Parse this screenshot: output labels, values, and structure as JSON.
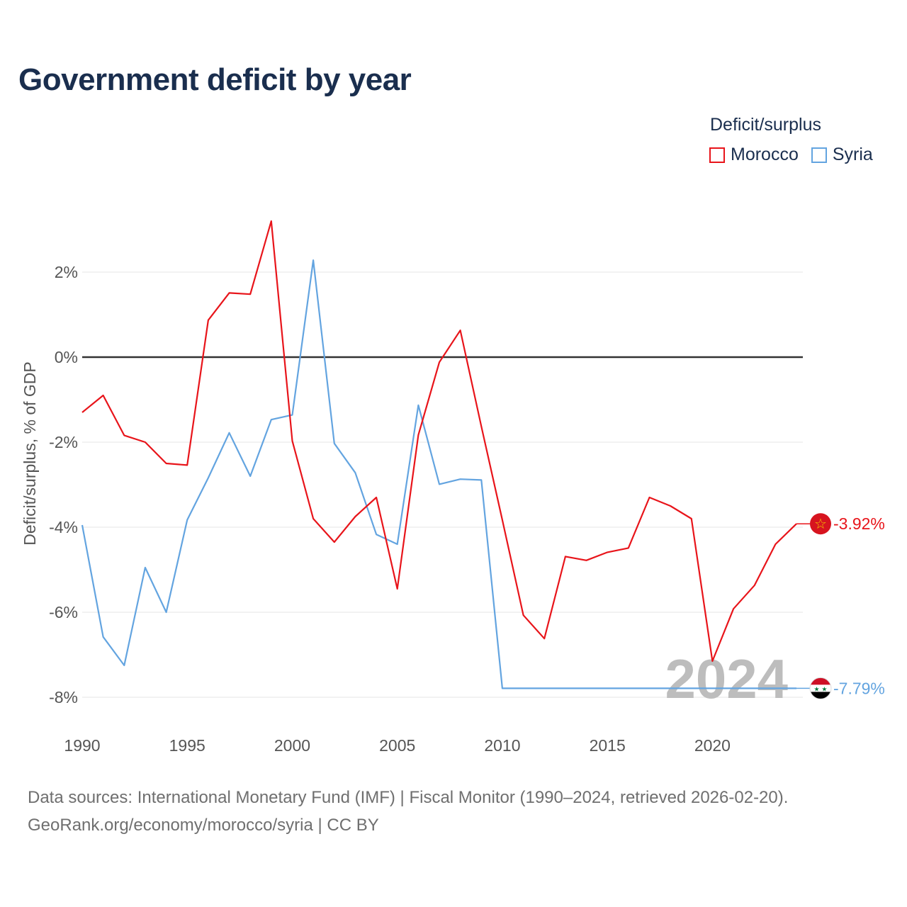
{
  "colors": {
    "morocco": "#e8141a",
    "syria": "#63a4e0",
    "title": "#1a2e4e",
    "zero_line": "#333333",
    "grid": "#e4e4e4"
  },
  "legend": {
    "title": "Deficit/surplus",
    "items": [
      {
        "label": "Morocco",
        "color": "#e8141a"
      },
      {
        "label": "Syria",
        "color": "#63a4e0"
      }
    ]
  },
  "footer": {
    "line1": "Data sources: International Monetary Fund (IMF) | Fiscal Monitor (1990–2024, retrieved 2026-02-20).",
    "line2": "GeoRank.org/economy/morocco/syria | CC BY"
  },
  "chart_data": {
    "type": "line",
    "title": "Government deficit by year",
    "xlabel": "",
    "ylabel": "Deficit/surplus, % of GDP",
    "xlim": [
      1990,
      2024
    ],
    "ylim": [
      -8.5,
      3.5
    ],
    "y_ticks": [
      2,
      0,
      -2,
      -4,
      -6,
      -8
    ],
    "y_tick_labels": [
      "2%",
      "0%",
      "-2%",
      "-4%",
      "-6%",
      "-8%"
    ],
    "x_ticks": [
      1990,
      1995,
      2000,
      2005,
      2010,
      2015,
      2020
    ],
    "x_tick_labels": [
      "1990",
      "1995",
      "2000",
      "2005",
      "2010",
      "2015",
      "2020"
    ],
    "current_year_label": "2024",
    "x": [
      1990,
      1991,
      1992,
      1993,
      1994,
      1995,
      1996,
      1997,
      1998,
      1999,
      2000,
      2001,
      2002,
      2003,
      2004,
      2005,
      2006,
      2007,
      2008,
      2009,
      2010,
      2011,
      2012,
      2013,
      2014,
      2015,
      2016,
      2017,
      2018,
      2019,
      2020,
      2021,
      2022,
      2023,
      2024
    ],
    "series": [
      {
        "name": "Morocco",
        "color": "#e8141a",
        "end_label": "-3.92%",
        "flag_icon": "morocco-flag-icon",
        "values": [
          -1.3,
          -0.9,
          -1.84,
          -2.0,
          -2.5,
          -2.54,
          0.87,
          1.51,
          1.48,
          3.2,
          -1.97,
          -3.8,
          -4.35,
          -3.75,
          -3.3,
          -5.45,
          -1.83,
          -0.12,
          0.63,
          -1.63,
          -3.83,
          -6.07,
          -6.62,
          -4.69,
          -4.78,
          -4.59,
          -4.49,
          -3.3,
          -3.5,
          -3.8,
          -7.15,
          -5.92,
          -5.37,
          -4.4,
          -3.92
        ]
      },
      {
        "name": "Syria",
        "color": "#63a4e0",
        "end_label": "-7.79%",
        "flag_icon": "syria-flag-icon",
        "values": [
          -3.95,
          -6.58,
          -7.25,
          -4.95,
          -6.0,
          -3.83,
          -2.84,
          -1.78,
          -2.8,
          -1.47,
          -1.36,
          2.28,
          -2.03,
          -2.72,
          -4.17,
          -4.4,
          -1.13,
          -2.99,
          -2.87,
          -2.89,
          -7.79,
          -7.79,
          -7.79,
          -7.79,
          -7.79,
          -7.79,
          -7.79,
          -7.79,
          -7.79,
          -7.79,
          -7.79,
          -7.79,
          -7.79,
          -7.79,
          -7.79
        ]
      }
    ]
  }
}
